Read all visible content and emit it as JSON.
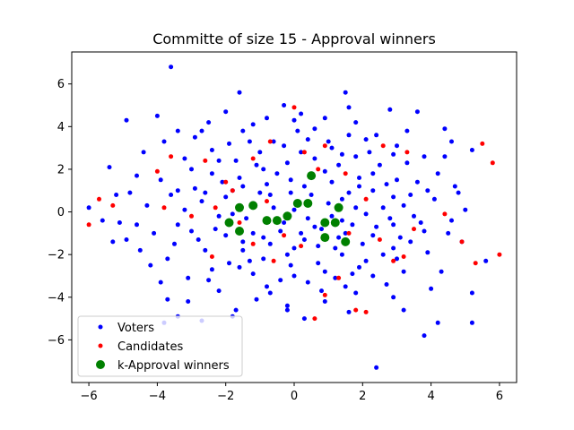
{
  "chart_data": {
    "type": "scatter",
    "title": "Committe of size 15 - Approval winners",
    "xlabel": "",
    "ylabel": "",
    "xlim": [
      -6.5,
      6.5
    ],
    "ylim": [
      -8.0,
      7.5
    ],
    "xticks": [
      -6,
      -4,
      -2,
      0,
      2,
      4,
      6
    ],
    "yticks": [
      -6,
      -4,
      -2,
      0,
      2,
      4,
      6
    ],
    "grid": false,
    "legend_position": "lower-left",
    "series": [
      {
        "name": "Voters",
        "color": "#0000ff",
        "marker": "small-dot",
        "points": [
          [
            -3.6,
            6.8
          ],
          [
            1.5,
            5.6
          ],
          [
            -1.6,
            5.6
          ],
          [
            2.8,
            4.8
          ],
          [
            3.6,
            4.7
          ],
          [
            -4.9,
            4.3
          ],
          [
            -4.0,
            4.5
          ],
          [
            -5.4,
            2.1
          ],
          [
            -6.0,
            0.2
          ],
          [
            -5.1,
            -0.5
          ],
          [
            -4.9,
            -1.3
          ],
          [
            -4.6,
            -0.6
          ],
          [
            -3.7,
            -4.1
          ],
          [
            -3.8,
            -5.2
          ],
          [
            -3.4,
            -4.9
          ],
          [
            -2.7,
            -5.1
          ],
          [
            -1.8,
            -4.9
          ],
          [
            4.2,
            -5.2
          ],
          [
            5.2,
            -5.2
          ],
          [
            3.8,
            -5.8
          ],
          [
            2.4,
            -7.3
          ],
          [
            5.2,
            -3.8
          ],
          [
            5.6,
            -2.3
          ],
          [
            4.8,
            0.9
          ],
          [
            4.6,
            3.3
          ],
          [
            4.4,
            3.9
          ],
          [
            5.2,
            2.9
          ],
          [
            4.5,
            -1.0
          ],
          [
            4.0,
            -3.6
          ],
          [
            3.2,
            -4.6
          ],
          [
            -4.4,
            2.8
          ],
          [
            -3.8,
            3.3
          ],
          [
            -2.9,
            3.5
          ],
          [
            -2.5,
            4.2
          ],
          [
            -1.5,
            3.8
          ],
          [
            -0.8,
            4.4
          ],
          [
            0.2,
            4.6
          ],
          [
            0.9,
            4.4
          ],
          [
            1.8,
            4.2
          ],
          [
            2.4,
            3.6
          ],
          [
            3.0,
            3.1
          ],
          [
            3.8,
            2.6
          ],
          [
            4.2,
            1.8
          ],
          [
            4.1,
            0.6
          ],
          [
            4.6,
            -0.4
          ],
          [
            3.9,
            -1.9
          ],
          [
            3.2,
            -2.8
          ],
          [
            2.7,
            -3.4
          ],
          [
            1.8,
            -3.8
          ],
          [
            0.9,
            -4.2
          ],
          [
            -0.2,
            -4.4
          ],
          [
            -1.1,
            -4.1
          ],
          [
            -2.2,
            -3.7
          ],
          [
            -3.1,
            -3.1
          ],
          [
            -3.7,
            -2.2
          ],
          [
            -4.1,
            -1.0
          ],
          [
            -4.3,
            0.3
          ],
          [
            -3.9,
            1.5
          ],
          [
            -3.2,
            2.5
          ],
          [
            -2.4,
            2.9
          ],
          [
            -1.7,
            2.4
          ],
          [
            -1.0,
            2.8
          ],
          [
            -0.3,
            3.1
          ],
          [
            0.4,
            3.4
          ],
          [
            1.1,
            3.0
          ],
          [
            1.8,
            2.6
          ],
          [
            2.5,
            2.2
          ],
          [
            3.0,
            1.5
          ],
          [
            3.4,
            0.8
          ],
          [
            3.5,
            -0.2
          ],
          [
            3.1,
            -1.2
          ],
          [
            2.6,
            -2.0
          ],
          [
            1.9,
            -2.6
          ],
          [
            1.2,
            -3.1
          ],
          [
            0.4,
            -3.3
          ],
          [
            -0.4,
            -3.2
          ],
          [
            -1.2,
            -2.9
          ],
          [
            -1.9,
            -2.4
          ],
          [
            -2.6,
            -1.8
          ],
          [
            -3.0,
            -0.9
          ],
          [
            -3.2,
            0.1
          ],
          [
            -2.9,
            1.1
          ],
          [
            -2.4,
            1.8
          ],
          [
            -1.6,
            1.6
          ],
          [
            -0.9,
            2.0
          ],
          [
            -0.2,
            2.3
          ],
          [
            0.6,
            2.5
          ],
          [
            1.3,
            2.2
          ],
          [
            1.9,
            1.6
          ],
          [
            2.3,
            1.0
          ],
          [
            2.6,
            0.2
          ],
          [
            2.4,
            -0.7
          ],
          [
            2.0,
            -1.5
          ],
          [
            1.4,
            -2.0
          ],
          [
            0.7,
            -2.4
          ],
          [
            -0.1,
            -2.5
          ],
          [
            -0.9,
            -2.2
          ],
          [
            -1.5,
            -1.8
          ],
          [
            -2.0,
            -1.1
          ],
          [
            -2.2,
            -0.2
          ],
          [
            -2.0,
            0.7
          ],
          [
            -1.5,
            1.2
          ],
          [
            -0.8,
            1.3
          ],
          [
            -0.1,
            1.5
          ],
          [
            0.5,
            1.6
          ],
          [
            1.1,
            1.4
          ],
          [
            1.6,
            0.9
          ],
          [
            1.8,
            0.2
          ],
          [
            1.7,
            -0.6
          ],
          [
            1.3,
            -1.2
          ],
          [
            0.7,
            -1.6
          ],
          [
            0.0,
            -1.7
          ],
          [
            -0.7,
            -1.5
          ],
          [
            -1.2,
            -1.0
          ],
          [
            -1.4,
            -0.3
          ],
          [
            -1.2,
            0.4
          ],
          [
            -0.7,
            0.8
          ],
          [
            -0.1,
            0.9
          ],
          [
            0.5,
            0.8
          ],
          [
            1.0,
            0.4
          ],
          [
            1.1,
            -0.2
          ],
          [
            0.8,
            -0.8
          ],
          [
            0.2,
            -1.0
          ],
          [
            -0.4,
            -0.9
          ],
          [
            -0.8,
            -0.5
          ],
          [
            -0.6,
            0.2
          ],
          [
            0.0,
            0.1
          ],
          [
            0.4,
            -0.3
          ],
          [
            -2.7,
            3.8
          ],
          [
            -1.2,
            4.1
          ],
          [
            0.6,
            3.9
          ],
          [
            2.1,
            3.4
          ],
          [
            3.3,
            2.3
          ],
          [
            3.9,
            1.0
          ],
          [
            3.8,
            -0.9
          ],
          [
            3.0,
            -2.2
          ],
          [
            1.5,
            -3.5
          ],
          [
            -0.7,
            -3.8
          ],
          [
            -2.5,
            -3.2
          ],
          [
            -3.5,
            -1.5
          ],
          [
            -3.6,
            0.8
          ],
          [
            -3.0,
            2.0
          ],
          [
            -1.9,
            3.2
          ],
          [
            0.1,
            3.8
          ],
          [
            1.6,
            3.6
          ],
          [
            2.9,
            2.7
          ],
          [
            3.6,
            1.4
          ],
          [
            3.7,
            -0.5
          ],
          [
            2.9,
            -1.7
          ],
          [
            1.7,
            -2.9
          ],
          [
            0.0,
            -3.0
          ],
          [
            -1.6,
            -2.6
          ],
          [
            -2.8,
            -1.3
          ],
          [
            -2.7,
            0.5
          ],
          [
            -2.1,
            1.4
          ],
          [
            -1.1,
            2.2
          ],
          [
            0.2,
            2.8
          ],
          [
            1.4,
            2.7
          ],
          [
            2.3,
            1.8
          ],
          [
            2.9,
            0.7
          ],
          [
            2.9,
            -0.6
          ],
          [
            2.3,
            -1.1
          ],
          [
            1.2,
            -1.7
          ],
          [
            -0.2,
            -2.0
          ],
          [
            -1.5,
            -1.4
          ],
          [
            -1.8,
            -0.1
          ],
          [
            -1.8,
            1.0
          ],
          [
            -0.5,
            1.8
          ],
          [
            0.9,
            1.9
          ],
          [
            1.9,
            1.2
          ],
          [
            2.1,
            -0.1
          ],
          [
            1.5,
            -1.0
          ],
          [
            0.3,
            -1.3
          ],
          [
            -0.9,
            -1.2
          ],
          [
            -1.0,
            0.9
          ],
          [
            0.3,
            1.2
          ],
          [
            1.4,
            0.6
          ],
          [
            1.4,
            -0.4
          ],
          [
            0.6,
            -0.7
          ],
          [
            -0.3,
            -0.5
          ],
          [
            -4.6,
            1.7
          ],
          [
            -4.8,
            0.9
          ],
          [
            -4.5,
            -1.8
          ],
          [
            -3.9,
            -3.3
          ],
          [
            -3.1,
            -4.2
          ],
          [
            -1.7,
            -4.6
          ],
          [
            0.3,
            -5.0
          ],
          [
            1.6,
            -4.7
          ],
          [
            2.9,
            -4.0
          ],
          [
            4.3,
            -2.8
          ],
          [
            4.9,
            -1.4
          ],
          [
            5.0,
            0.1
          ],
          [
            4.4,
            2.6
          ],
          [
            3.3,
            3.8
          ],
          [
            1.6,
            4.9
          ],
          [
            -0.3,
            5.0
          ],
          [
            -2.0,
            4.7
          ],
          [
            -3.4,
            3.8
          ],
          [
            -5.2,
            0.8
          ],
          [
            -5.3,
            -1.4
          ],
          [
            -2.3,
            -0.8
          ],
          [
            -2.6,
            0.9
          ],
          [
            -1.3,
            -2.3
          ],
          [
            0.9,
            -2.8
          ],
          [
            2.1,
            -2.3
          ],
          [
            2.8,
            -0.3
          ],
          [
            2.7,
            1.3
          ],
          [
            1.0,
            3.3
          ],
          [
            -0.6,
            3.3
          ],
          [
            -2.2,
            2.4
          ],
          [
            -3.4,
            1.0
          ],
          [
            -3.4,
            -0.6
          ],
          [
            -2.4,
            -2.7
          ],
          [
            -0.8,
            -3.5
          ],
          [
            0.8,
            -3.7
          ],
          [
            2.3,
            -3.0
          ],
          [
            3.4,
            -1.4
          ],
          [
            3.2,
            0.3
          ],
          [
            2.2,
            2.8
          ],
          [
            -1.3,
            3.3
          ],
          [
            -4.2,
            -2.5
          ],
          [
            4.7,
            1.2
          ],
          [
            0.0,
            4.3
          ],
          [
            -0.2,
            -4.6
          ],
          [
            -5.6,
            -0.4
          ]
        ]
      },
      {
        "name": "Candidates",
        "color": "#ff0000",
        "marker": "small-dot",
        "points": [
          [
            -6.0,
            -0.6
          ],
          [
            -5.7,
            0.6
          ],
          [
            -5.3,
            0.3
          ],
          [
            -4.0,
            1.9
          ],
          [
            -3.6,
            2.6
          ],
          [
            -2.6,
            2.4
          ],
          [
            -2.0,
            1.4
          ],
          [
            -1.8,
            1.0
          ],
          [
            -3.0,
            -0.2
          ],
          [
            -2.3,
            0.2
          ],
          [
            -1.2,
            -1.5
          ],
          [
            -0.6,
            -2.3
          ],
          [
            0.6,
            -5.0
          ],
          [
            0.9,
            -3.9
          ],
          [
            1.3,
            -3.1
          ],
          [
            2.1,
            -4.7
          ],
          [
            1.8,
            -4.6
          ],
          [
            2.9,
            -2.3
          ],
          [
            3.2,
            -2.1
          ],
          [
            5.3,
            -2.4
          ],
          [
            6.0,
            -2.0
          ],
          [
            5.8,
            2.3
          ],
          [
            5.5,
            3.2
          ],
          [
            4.4,
            -0.1
          ],
          [
            3.3,
            2.8
          ],
          [
            2.6,
            3.1
          ],
          [
            2.1,
            0.6
          ],
          [
            1.5,
            1.8
          ],
          [
            0.9,
            3.1
          ],
          [
            0.0,
            4.9
          ],
          [
            -0.7,
            3.3
          ],
          [
            -1.2,
            2.5
          ],
          [
            0.3,
            2.8
          ],
          [
            0.7,
            2.0
          ],
          [
            1.2,
            -0.4
          ],
          [
            1.6,
            -1.0
          ],
          [
            -0.8,
            0.5
          ],
          [
            -1.6,
            -0.5
          ],
          [
            0.2,
            -1.6
          ],
          [
            -0.3,
            -1.1
          ],
          [
            2.5,
            -1.3
          ],
          [
            -2.4,
            -2.1
          ],
          [
            4.9,
            -1.4
          ],
          [
            -3.8,
            0.2
          ],
          [
            3.5,
            -0.8
          ]
        ]
      },
      {
        "name": "k-Approval winners",
        "color": "#008000",
        "marker": "large-dot",
        "points": [
          [
            -1.9,
            -0.5
          ],
          [
            -1.6,
            0.2
          ],
          [
            -1.6,
            -0.9
          ],
          [
            -1.2,
            0.3
          ],
          [
            -0.8,
            -0.4
          ],
          [
            -0.5,
            -0.4
          ],
          [
            -0.2,
            -0.2
          ],
          [
            0.1,
            0.4
          ],
          [
            0.4,
            0.4
          ],
          [
            0.5,
            1.7
          ],
          [
            0.9,
            -0.5
          ],
          [
            1.2,
            -0.5
          ],
          [
            1.3,
            0.2
          ],
          [
            0.9,
            -1.2
          ],
          [
            1.5,
            -1.4
          ]
        ]
      }
    ]
  }
}
